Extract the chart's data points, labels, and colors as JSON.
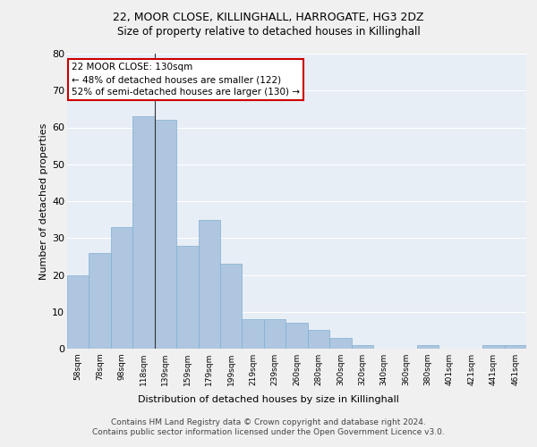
{
  "title1": "22, MOOR CLOSE, KILLINGHALL, HARROGATE, HG3 2DZ",
  "title2": "Size of property relative to detached houses in Killinghall",
  "xlabel": "Distribution of detached houses by size in Killinghall",
  "ylabel": "Number of detached properties",
  "categories": [
    "58sqm",
    "78sqm",
    "98sqm",
    "118sqm",
    "139sqm",
    "159sqm",
    "179sqm",
    "199sqm",
    "219sqm",
    "239sqm",
    "260sqm",
    "280sqm",
    "300sqm",
    "320sqm",
    "340sqm",
    "360sqm",
    "380sqm",
    "401sqm",
    "421sqm",
    "441sqm",
    "461sqm"
  ],
  "values": [
    20,
    26,
    33,
    63,
    62,
    28,
    35,
    23,
    8,
    8,
    7,
    5,
    3,
    1,
    0,
    0,
    1,
    0,
    0,
    1,
    1
  ],
  "bar_color": "#aec6df",
  "bar_edge_color": "#7fafd4",
  "annotation_text": "22 MOOR CLOSE: 130sqm\n← 48% of detached houses are smaller (122)\n52% of semi-detached houses are larger (130) →",
  "annotation_box_color": "#ffffff",
  "annotation_border_color": "#cc0000",
  "vline_x": 3.5,
  "ylim": [
    0,
    80
  ],
  "yticks": [
    0,
    10,
    20,
    30,
    40,
    50,
    60,
    70,
    80
  ],
  "background_color": "#e8eef5",
  "grid_color": "#ffffff",
  "fig_color": "#f0f0f0",
  "footer": "Contains HM Land Registry data © Crown copyright and database right 2024.\nContains public sector information licensed under the Open Government Licence v3.0."
}
